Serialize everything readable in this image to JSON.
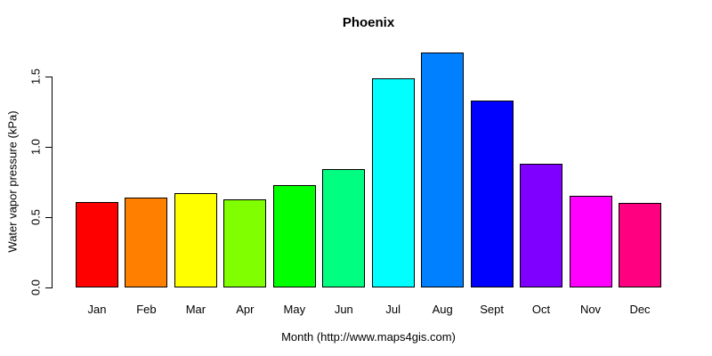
{
  "chart_data": {
    "type": "bar",
    "title": "Phoenix",
    "xlabel": "Month (http://www.maps4gis.com)",
    "ylabel": "Water vapor pressure (kPa)",
    "categories": [
      "Jan",
      "Feb",
      "Mar",
      "Apr",
      "May",
      "Jun",
      "Jul",
      "Aug",
      "Sept",
      "Oct",
      "Nov",
      "Dec"
    ],
    "values": [
      0.61,
      0.64,
      0.67,
      0.63,
      0.73,
      0.84,
      1.49,
      1.67,
      1.33,
      0.88,
      0.65,
      0.6
    ],
    "bar_colors": [
      "#FF0000",
      "#FF8000",
      "#FFFF00",
      "#80FF00",
      "#00FF00",
      "#00FF80",
      "#00FFFF",
      "#0080FF",
      "#0000FF",
      "#8000FF",
      "#FF00FF",
      "#FF0080"
    ],
    "bar_border_color": "#000000",
    "y_ticks": [
      "0.0",
      "0.5",
      "1.0",
      "1.5"
    ],
    "ylim": [
      0,
      1.7
    ],
    "grid": false,
    "legend": "none",
    "background": "#FFFFFF"
  }
}
